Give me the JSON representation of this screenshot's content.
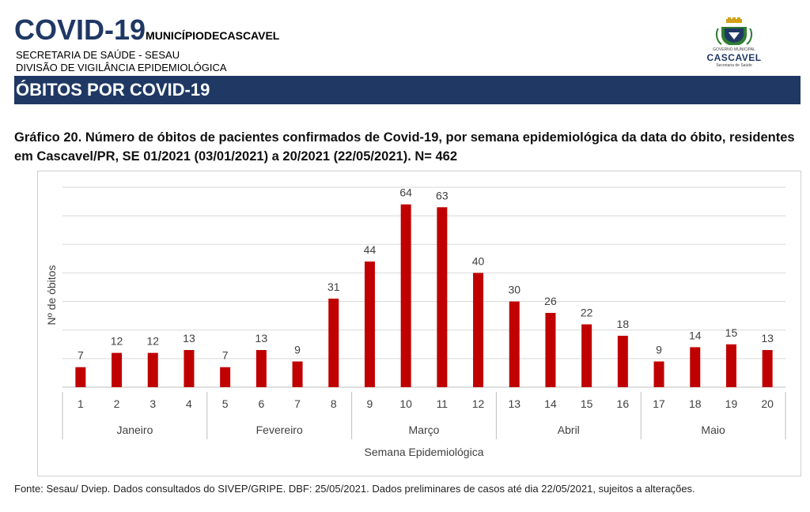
{
  "header": {
    "covid": "COVID-19",
    "municipio": "MUNICÍPIODECASCAVEL",
    "secretaria": "SECRETARIA DE SAÚDE - SESAU",
    "divisao": "DIVISÃO DE VIGILÂNCIA EPIDEMIOLÓGICA",
    "logo_subtitle": "GOVERNO MUNICIPAL",
    "logo_name": "CASCAVEL",
    "logo_sub2": "Secretaria de Saúde"
  },
  "banner": {
    "title": "ÓBITOS POR COVID-19"
  },
  "chart_caption": "Gráfico 20. Número de óbitos de pacientes confirmados de Covid-19, por semana epidemiológica da data do óbito, residentes em Cascavel/PR,  SE 01/2021 (03/01/2021) a 20/2021 (22/05/2021). N= 462",
  "chart_data": {
    "type": "bar",
    "title": "",
    "xlabel": "Semana Epidemiológica",
    "ylabel": "Nº de óbitos",
    "categories": [
      "1",
      "2",
      "3",
      "4",
      "5",
      "6",
      "7",
      "8",
      "9",
      "10",
      "11",
      "12",
      "13",
      "14",
      "15",
      "16",
      "17",
      "18",
      "19",
      "20"
    ],
    "values": [
      7,
      12,
      12,
      13,
      7,
      13,
      9,
      31,
      44,
      64,
      63,
      40,
      30,
      26,
      22,
      18,
      9,
      14,
      15,
      13
    ],
    "month_groups": [
      {
        "label": "Janeiro",
        "start": 0,
        "end": 3
      },
      {
        "label": "Fevereiro",
        "start": 4,
        "end": 7
      },
      {
        "label": "Março",
        "start": 8,
        "end": 11
      },
      {
        "label": "Abril",
        "start": 12,
        "end": 15
      },
      {
        "label": "Maio",
        "start": 16,
        "end": 19
      }
    ],
    "ylim": [
      0,
      70
    ],
    "grid": true,
    "data_labels": true,
    "bar_color": "#c00000"
  },
  "footnote": "Fonte: Sesau/ Dviep. Dados consultados do SIVEP/GRIPE. DBF: 25/05/2021. Dados preliminares de casos até dia 22/05/2021, sujeitos a alterações."
}
